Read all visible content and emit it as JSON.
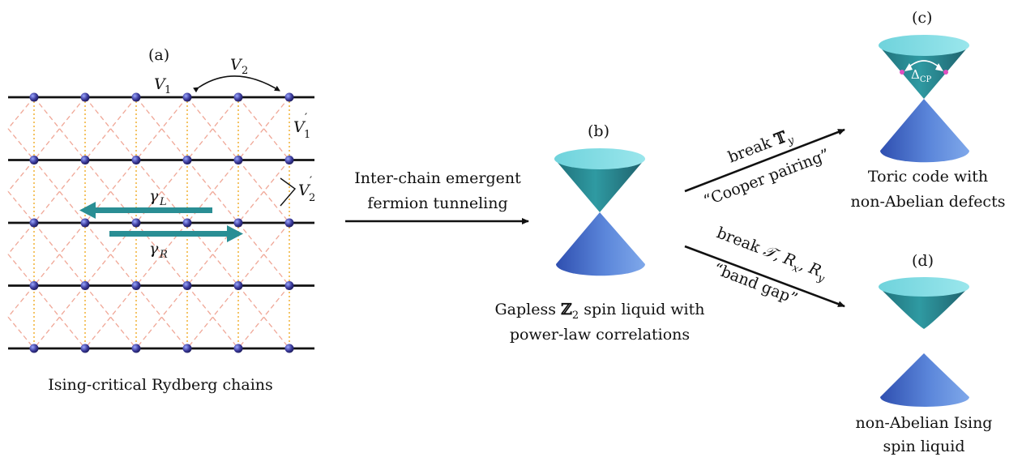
{
  "panel_a": {
    "label": "(a)",
    "caption": "Ising-critical Rydberg chains",
    "v1": "V",
    "v1_sub": "1",
    "v2": "V",
    "v2_sub": "2",
    "v1p": "V",
    "v1p_sub": "1",
    "v1p_prime": "′",
    "v2p": "V",
    "v2p_sub": "2",
    "v2p_prime": "′",
    "gamma_l": "γ",
    "gamma_l_sub": "L",
    "gamma_r": "γ",
    "gamma_r_sub": "R",
    "chains": 5,
    "sites_per_chain": 6
  },
  "arrow_ab": {
    "line1": "Inter-chain emergent",
    "line2": "fermion tunneling"
  },
  "panel_b": {
    "label": "(b)",
    "caption_line1_pre": "Gapless ",
    "caption_line1_z": "ℤ",
    "caption_line1_sub": "2",
    "caption_line1_post": " spin liquid with",
    "caption_line2": "power-law correlations"
  },
  "arrow_bc": {
    "upper_pre": "break ",
    "upper_sym": "𝕋",
    "upper_sub": "y",
    "lower": "“Cooper pairing”"
  },
  "arrow_bd": {
    "upper_pre": "break ",
    "upper_t": "𝒯",
    "upper_rest1": ", R",
    "upper_sub1": "x",
    "upper_rest2": ", R",
    "upper_sub2": "y",
    "lower": "“band gap”"
  },
  "panel_c": {
    "label": "(c)",
    "delta": "Δ",
    "delta_sub": "CP",
    "caption_line1": "Toric code with",
    "caption_line2": "non-Abelian defects"
  },
  "panel_d": {
    "label": "(d)",
    "caption_line1": "non-Abelian Ising",
    "caption_line2": "spin liquid"
  },
  "colors": {
    "chain": "#111111",
    "site": "#3b3a9a",
    "vertical_bond": "#f2b640",
    "diagonal_bond": "#f0a898",
    "gamma_arrow": "#2a8e94",
    "cone_top": "#2e8e96",
    "cone_bottom": "#4e72c8",
    "cp_dot": "#e04fc0"
  }
}
